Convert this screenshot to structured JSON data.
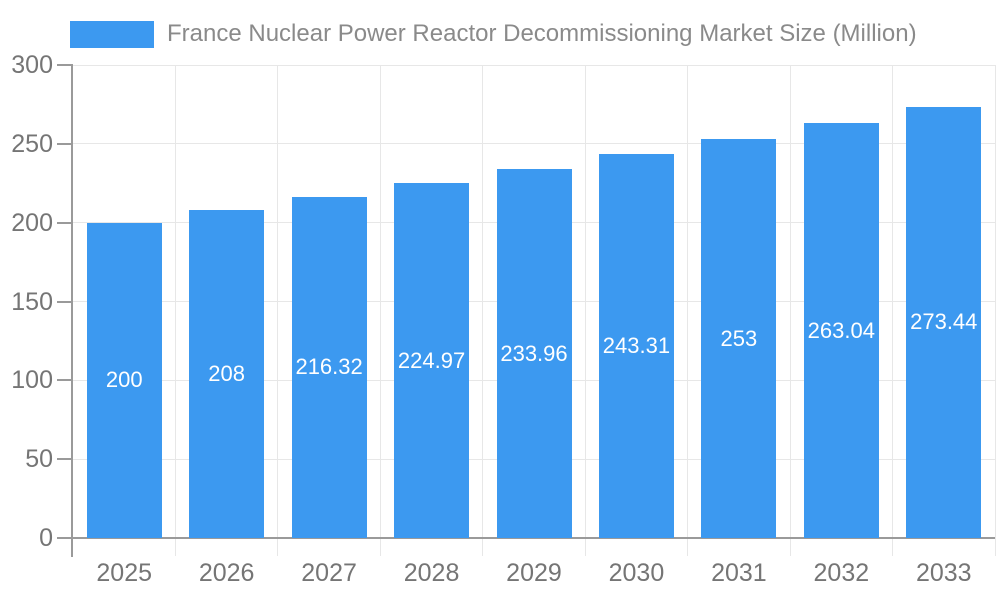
{
  "chart_data": {
    "type": "bar",
    "title": "France Nuclear Power Reactor Decommissioning Market Size (Million)",
    "categories": [
      "2025",
      "2026",
      "2027",
      "2028",
      "2029",
      "2030",
      "2031",
      "2032",
      "2033"
    ],
    "values": [
      200,
      208,
      216.32,
      224.97,
      233.96,
      243.31,
      253,
      263.04,
      273.44
    ],
    "value_labels": [
      "200",
      "208",
      "216.32",
      "224.97",
      "233.96",
      "243.31",
      "253",
      "263.04",
      "273.44"
    ],
    "xlabel": "",
    "ylabel": "",
    "ylim": [
      0,
      300
    ],
    "yticks": [
      0,
      50,
      100,
      150,
      200,
      250,
      300
    ],
    "grid": true,
    "legend_position": "top-left",
    "colors": {
      "bar": "#3c99f0",
      "gridline": "#e7e7e7",
      "axis": "#9a9a9a",
      "axis_label": "#757575",
      "title": "#8a8a8a",
      "bar_label": "#ffffff",
      "background": "#ffffff"
    }
  }
}
